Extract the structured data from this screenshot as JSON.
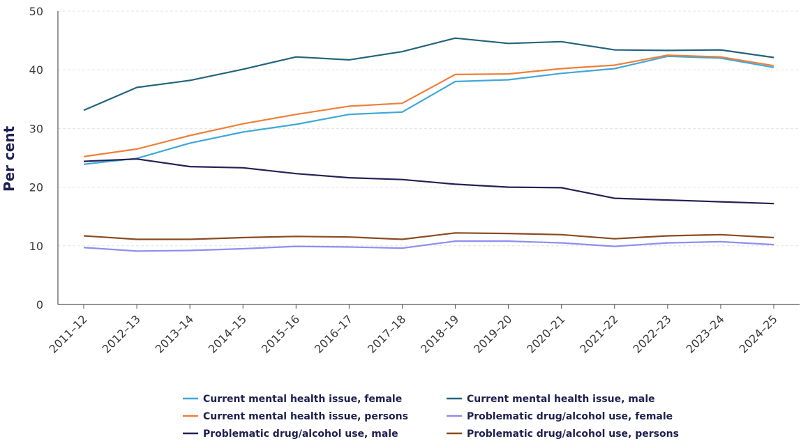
{
  "chart_data": {
    "type": "line",
    "title": "",
    "xlabel": "",
    "ylabel": "Per cent",
    "ylim": [
      0,
      50
    ],
    "yticks": [
      0,
      10,
      20,
      30,
      40,
      50
    ],
    "grid": true,
    "legend_position": "bottom",
    "categories": [
      "2011–12",
      "2012–13",
      "2013–14",
      "2014–15",
      "2015–16",
      "2016–17",
      "2017–18",
      "2018–19",
      "2019–20",
      "2020–21",
      "2021–22",
      "2022–23",
      "2023–24",
      "2024–25"
    ],
    "series": [
      {
        "name": "Current mental health issue, female",
        "color": "#3ea8d8",
        "values": [
          23.9,
          24.9,
          27.5,
          29.4,
          30.7,
          32.4,
          32.8,
          38.0,
          38.3,
          39.4,
          40.2,
          42.3,
          42.0,
          40.4
        ]
      },
      {
        "name": "Current mental health issue, male",
        "color": "#23647d",
        "values": [
          33.1,
          37.0,
          38.2,
          40.1,
          42.2,
          41.7,
          43.1,
          45.4,
          44.5,
          44.8,
          43.4,
          43.3,
          43.4,
          42.1
        ]
      },
      {
        "name": "Current mental health issue, persons",
        "color": "#ef7f3a",
        "values": [
          25.2,
          26.5,
          28.8,
          30.8,
          32.4,
          33.8,
          34.3,
          39.2,
          39.3,
          40.2,
          40.8,
          42.5,
          42.2,
          40.7
        ]
      },
      {
        "name": "Problematic drug/alcohol use, female",
        "color": "#8e8ef0",
        "values": [
          9.7,
          9.1,
          9.2,
          9.5,
          9.9,
          9.8,
          9.6,
          10.8,
          10.8,
          10.5,
          9.9,
          10.5,
          10.7,
          10.2
        ]
      },
      {
        "name": "Problematic drug/alcohol use, male",
        "color": "#232153",
        "values": [
          24.4,
          24.8,
          23.5,
          23.3,
          22.3,
          21.6,
          21.3,
          20.5,
          20.0,
          19.9,
          18.1,
          17.8,
          17.5,
          17.2
        ]
      },
      {
        "name": "Problematic drug/alcohol use, persons",
        "color": "#8a4a22",
        "values": [
          11.7,
          11.1,
          11.1,
          11.4,
          11.6,
          11.5,
          11.1,
          12.2,
          12.1,
          11.9,
          11.2,
          11.7,
          11.9,
          11.4
        ]
      }
    ]
  }
}
